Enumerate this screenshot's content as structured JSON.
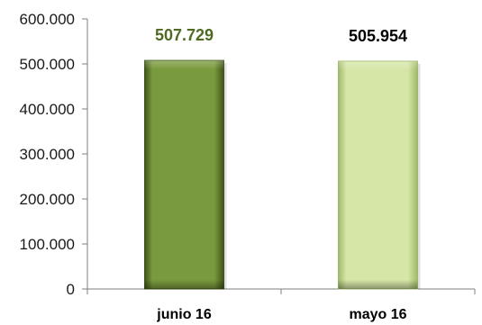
{
  "chart_data": {
    "type": "bar",
    "categories": [
      "junio 16",
      "mayo 16"
    ],
    "values": [
      507729,
      505954
    ],
    "data_labels": [
      "507.729",
      "505.954"
    ],
    "ylim": [
      0,
      600000
    ],
    "yticks": [
      0,
      100000,
      200000,
      300000,
      400000,
      500000,
      600000
    ],
    "ytick_labels": [
      "0",
      "100.000",
      "200.000",
      "300.000",
      "400.000",
      "500.000",
      "600.000"
    ],
    "grid": false,
    "legend": "none",
    "colors": {
      "bar_fills": [
        "#7a9a3e",
        "#d6e6a6"
      ],
      "bar_dark": [
        "#3f5418",
        "#9fb86a"
      ],
      "data_label_colors": [
        "#4f6a22",
        "#000000"
      ],
      "axis": "#7f7f7f"
    }
  }
}
